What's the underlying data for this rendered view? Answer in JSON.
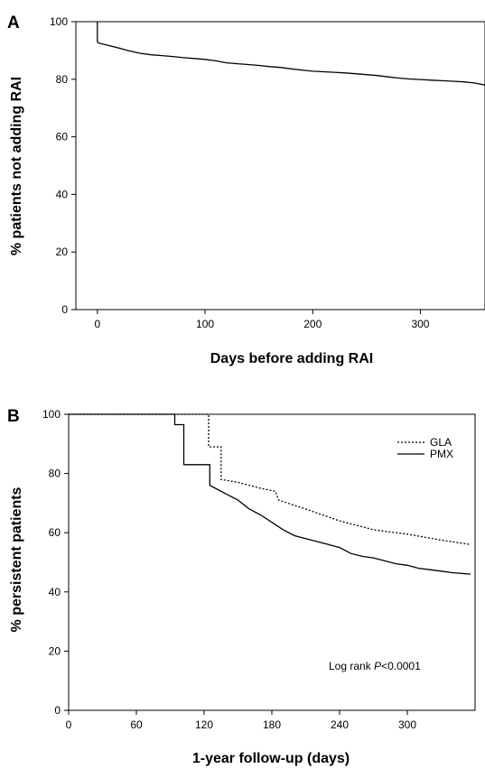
{
  "chart_data": [
    {
      "panel": "A",
      "type": "line",
      "title": "",
      "xlabel": "Days before adding RAI",
      "ylabel": "% patients not adding RAI",
      "xlim": [
        -20,
        360
      ],
      "ylim": [
        0,
        100
      ],
      "xticks": [
        0,
        100,
        200,
        300
      ],
      "yticks": [
        0,
        20,
        40,
        60,
        80,
        100
      ],
      "grid": false,
      "legend": "none",
      "series": [
        {
          "line_style": "solid",
          "color": "#000000",
          "x": [
            0,
            0,
            1,
            10,
            20,
            30,
            40,
            50,
            60,
            70,
            80,
            90,
            100,
            110,
            120,
            130,
            140,
            150,
            160,
            170,
            180,
            190,
            200,
            210,
            220,
            230,
            240,
            250,
            260,
            270,
            280,
            290,
            300,
            310,
            320,
            330,
            340,
            350,
            360
          ],
          "y": [
            100,
            93,
            92.6,
            91.8,
            90.8,
            89.8,
            89.0,
            88.5,
            88.2,
            87.9,
            87.5,
            87.2,
            86.9,
            86.4,
            85.7,
            85.4,
            85.1,
            84.8,
            84.4,
            84.1,
            83.6,
            83.2,
            82.8,
            82.6,
            82.4,
            82.2,
            81.9,
            81.6,
            81.3,
            80.8,
            80.4,
            80.1,
            79.9,
            79.7,
            79.5,
            79.3,
            79.1,
            78.7,
            78.0
          ]
        }
      ]
    },
    {
      "panel": "B",
      "type": "line",
      "title": "",
      "xlabel": "1-year follow-up (days)",
      "ylabel": "% persistent patients",
      "xlim": [
        0,
        360
      ],
      "ylim": [
        0,
        100
      ],
      "xticks": [
        0,
        60,
        120,
        180,
        240,
        300
      ],
      "yticks": [
        0,
        20,
        40,
        60,
        80,
        100
      ],
      "grid": false,
      "legend": "top-right",
      "annotation": {
        "prefix": "Log rank ",
        "italic": "P",
        "suffix": "<0.0001"
      },
      "series": [
        {
          "name": "GLA",
          "line_style": "dotted",
          "color": "#000000",
          "x": [
            0,
            90,
            124,
            124,
            135,
            135,
            150,
            170,
            183,
            186,
            210,
            240,
            270,
            300,
            330,
            356
          ],
          "y": [
            100,
            100,
            100,
            89,
            89,
            78,
            77,
            75,
            74,
            71,
            68,
            64,
            61,
            59.5,
            57.5,
            56
          ]
        },
        {
          "name": "PMX",
          "line_style": "solid",
          "color": "#000000",
          "x": [
            0,
            92,
            94,
            94,
            102,
            102,
            125,
            125,
            130,
            140,
            150,
            160,
            170,
            180,
            190,
            200,
            210,
            220,
            230,
            240,
            250,
            260,
            270,
            280,
            290,
            300,
            310,
            320,
            330,
            340,
            356
          ],
          "y": [
            100,
            100,
            100,
            96.5,
            96.5,
            83,
            83,
            76,
            75,
            73,
            71,
            68,
            66,
            63.5,
            61,
            59,
            58,
            57,
            56,
            55,
            53,
            52,
            51.5,
            50.5,
            49.5,
            49,
            48,
            47.5,
            47,
            46.5,
            46
          ]
        }
      ]
    }
  ]
}
